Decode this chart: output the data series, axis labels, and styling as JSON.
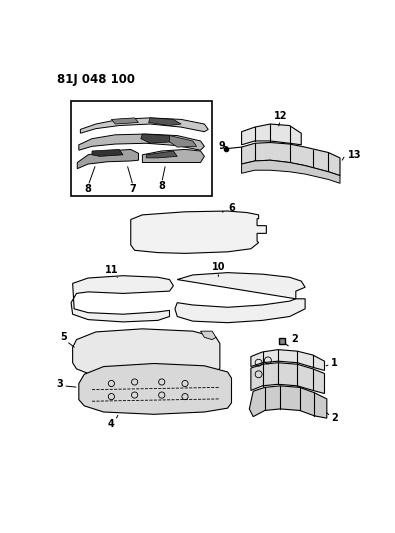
{
  "title": "81J 048 100",
  "bg": "#ffffff",
  "lc": "#000000",
  "fig_w": 3.95,
  "fig_h": 5.33,
  "dpi": 100
}
